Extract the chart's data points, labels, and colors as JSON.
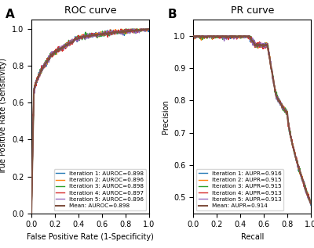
{
  "roc_title": "ROC curve",
  "pr_title": "PR curve",
  "roc_xlabel": "False Positive Rate (1-Specificity)",
  "roc_ylabel": "True Positive Rate (Sensitivity)",
  "pr_xlabel": "Recall",
  "pr_ylabel": "Precision",
  "panel_a_label": "A",
  "panel_b_label": "B",
  "iterations": [
    "Iteration 1",
    "Iteration 2",
    "Iteration 3",
    "Iteration 4",
    "Iteration 5",
    "Mean"
  ],
  "auroc_values": [
    0.898,
    0.896,
    0.898,
    0.897,
    0.896,
    0.898
  ],
  "aupr_values": [
    0.916,
    0.915,
    0.915,
    0.913,
    0.913,
    0.914
  ],
  "colors": [
    "#1f77b4",
    "#ff7f0e",
    "#2ca02c",
    "#d62728",
    "#9467bd",
    "#7f4f3f"
  ],
  "linewidths": [
    1.0,
    1.0,
    1.0,
    1.0,
    1.0,
    1.5
  ],
  "roc_xlim": [
    0.0,
    1.0
  ],
  "roc_ylim": [
    0.0,
    1.05
  ],
  "pr_xlim": [
    0.0,
    1.0
  ],
  "pr_ylim": [
    0.45,
    1.05
  ],
  "figsize": [
    4.0,
    3.17
  ],
  "dpi": 100
}
